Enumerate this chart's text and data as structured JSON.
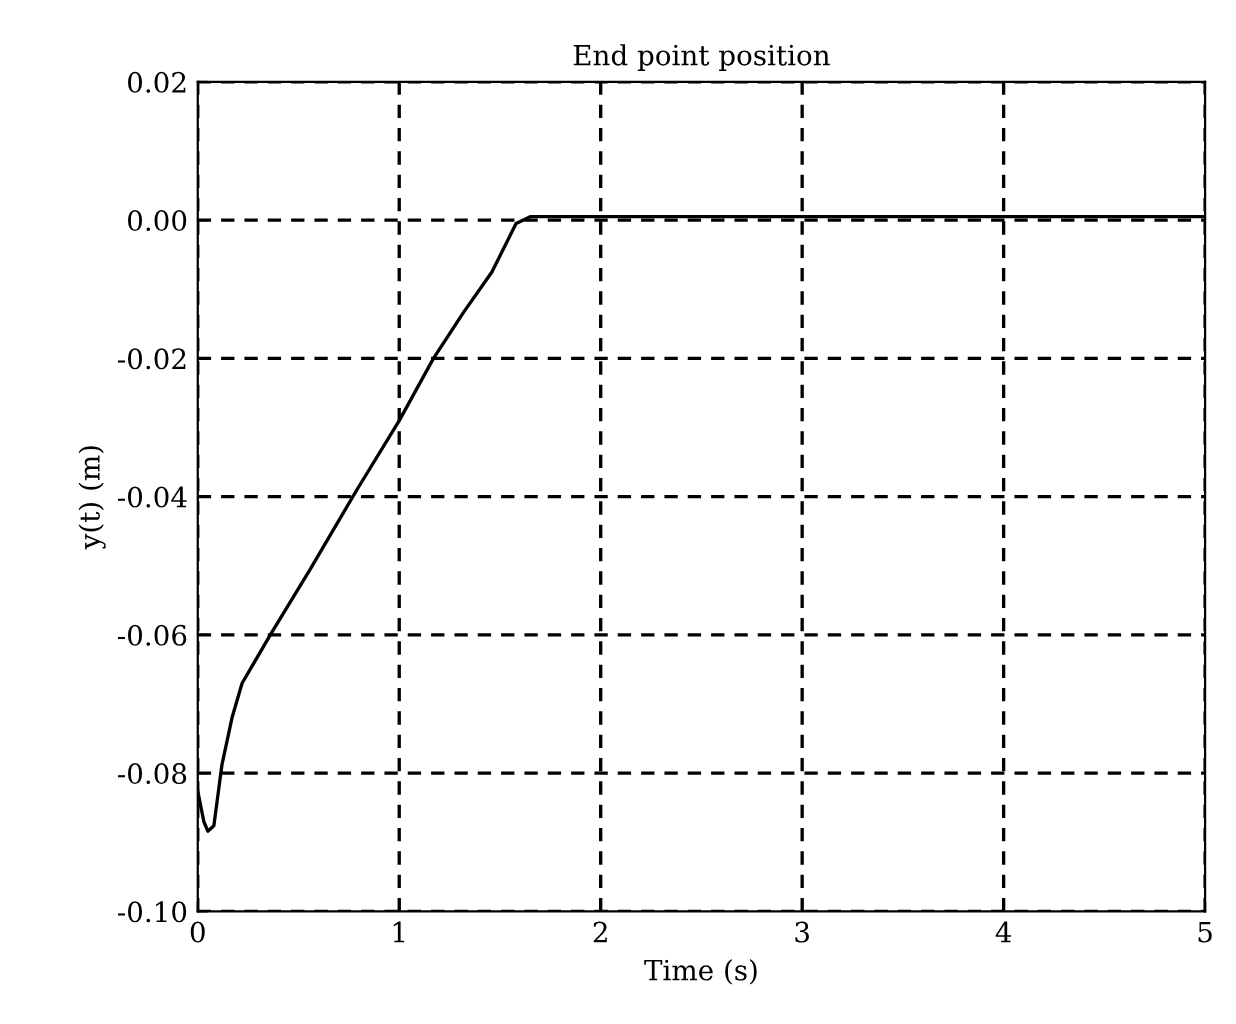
{
  "chart_data": {
    "type": "line",
    "title": "End point position",
    "xlabel": "Time (s)",
    "ylabel": "y(t) (m)",
    "series": [
      {
        "color": "#000000",
        "x": [
          0,
          0.03,
          0.05,
          0.08,
          0.12,
          0.17,
          0.22,
          0.36,
          0.56,
          0.79,
          1.0,
          1.17,
          1.32,
          1.46,
          1.58,
          1.65,
          5
        ],
        "values": [
          -0.0826,
          -0.087,
          -0.0884,
          -0.0876,
          -0.0788,
          -0.072,
          -0.067,
          -0.06,
          -0.0504,
          -0.039,
          -0.029,
          -0.02,
          -0.0133,
          -0.0075,
          -0.0005,
          0.0005,
          0.0005
        ]
      }
    ],
    "xlim": [
      0,
      5
    ],
    "ylim": [
      -0.1,
      0.02
    ],
    "xticks": [
      0,
      1,
      2,
      3,
      4,
      5
    ],
    "yticks": [
      {
        "value": -0.1,
        "label": "-0.10"
      },
      {
        "value": -0.08,
        "label": "-0.08"
      },
      {
        "value": -0.06,
        "label": "-0.06"
      },
      {
        "value": -0.04,
        "label": "-0.04"
      },
      {
        "value": -0.02,
        "label": "-0.02"
      },
      {
        "value": 0,
        "label": "0.00"
      },
      {
        "value": 0.02,
        "label": "0.02"
      }
    ],
    "grid": true,
    "line_style": "solid"
  }
}
